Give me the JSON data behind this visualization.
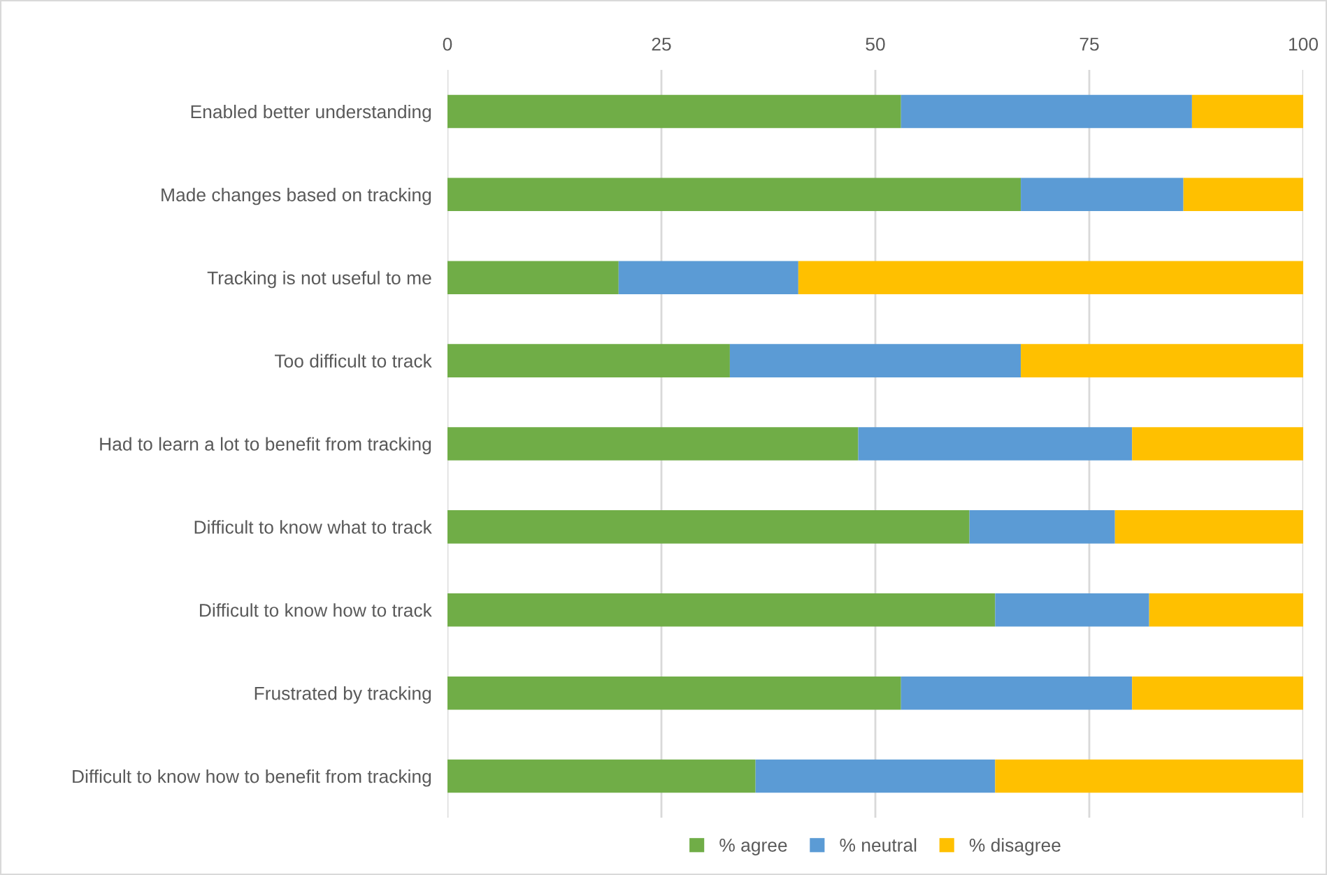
{
  "chart_data": {
    "type": "bar",
    "orientation": "horizontal",
    "stacked": true,
    "categories": [
      "Enabled better understanding",
      "Made changes based on tracking",
      "Tracking is not useful to me",
      "Too difficult to track",
      "Had to learn a lot to benefit from tracking",
      "Difficult to know what to track",
      "Difficult to know how to track",
      "Frustrated by tracking",
      "Difficult to know how to benefit from tracking"
    ],
    "series": [
      {
        "name": "% agree",
        "color": "#70ad47",
        "values": [
          53,
          67,
          20,
          33,
          48,
          61,
          64,
          53,
          36
        ]
      },
      {
        "name": "% neutral",
        "color": "#5b9bd5",
        "values": [
          34,
          19,
          21,
          34,
          32,
          17,
          18,
          27,
          28
        ]
      },
      {
        "name": "% disagree",
        "color": "#ffc000",
        "values": [
          13,
          14,
          59,
          33,
          20,
          22,
          18,
          20,
          36
        ]
      }
    ],
    "xlim": [
      0,
      100
    ],
    "xticks": [
      0,
      25,
      50,
      75,
      100
    ],
    "grid": "x",
    "legend": "bottom"
  }
}
